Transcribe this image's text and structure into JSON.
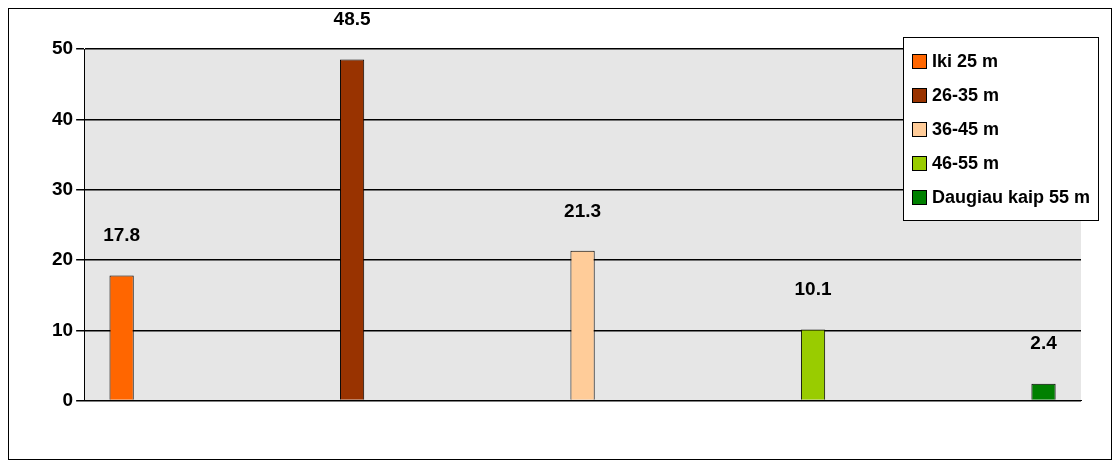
{
  "chart_data": {
    "type": "bar",
    "categories": [
      null,
      null,
      null,
      null,
      null
    ],
    "series": [
      {
        "name": "Iki 25 m",
        "color": "#ff6600",
        "values": [
          17.8,
          null,
          null,
          null,
          null
        ]
      },
      {
        "name": "26-35 m",
        "color": "#993300",
        "values": [
          null,
          48.5,
          null,
          null,
          null
        ]
      },
      {
        "name": "36-45 m",
        "color": "#ffcc99",
        "values": [
          null,
          null,
          21.3,
          null,
          null
        ]
      },
      {
        "name": "46-55 m",
        "color": "#99cc00",
        "values": [
          null,
          null,
          null,
          10.1,
          null
        ]
      },
      {
        "name": "Daugiau kaip 55 m",
        "color": "#008000",
        "values": [
          null,
          null,
          null,
          null,
          2.4
        ]
      }
    ],
    "ylim": [
      0,
      50
    ],
    "yticks": [
      0,
      10,
      20,
      30,
      40,
      50
    ],
    "grid": "y",
    "legend": "top right",
    "data_labels": true
  }
}
